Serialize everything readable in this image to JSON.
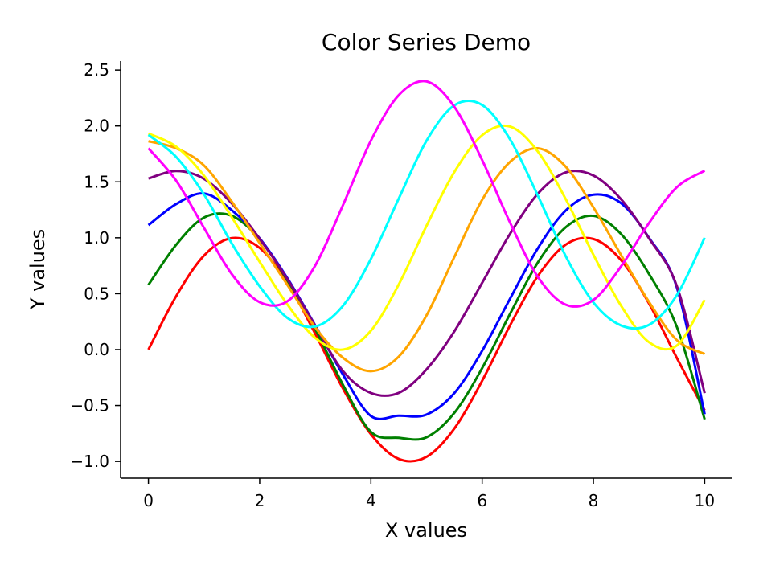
{
  "chart_data": {
    "type": "line",
    "title": "Color Series Demo",
    "xlabel": "X values",
    "ylabel": "Y values",
    "xlim": [
      -0.5,
      10.5
    ],
    "ylim": [
      -1.15,
      2.58
    ],
    "xticks": [
      0,
      2,
      4,
      6,
      8,
      10
    ],
    "xtick_labels": [
      "0",
      "2",
      "4",
      "6",
      "8",
      "10"
    ],
    "yticks": [
      -1.0,
      -0.5,
      0.0,
      0.5,
      1.0,
      1.5,
      2.0,
      2.5
    ],
    "ytick_labels": [
      "−1.0",
      "−0.5",
      "0.0",
      "0.5",
      "1.0",
      "1.5",
      "2.0",
      "2.5"
    ],
    "grid": false,
    "legend": "none",
    "x": [
      0,
      0.5,
      1,
      1.5,
      2,
      2.5,
      3,
      3.5,
      4,
      4.5,
      5,
      5.5,
      6,
      6.5,
      7,
      7.5,
      8,
      8.5,
      9,
      9.5,
      10
    ],
    "series": [
      {
        "color": "#ff0000",
        "values": [
          0.0,
          0.479,
          0.841,
          0.997,
          0.909,
          0.598,
          0.141,
          -0.351,
          -0.757,
          -0.978,
          -0.959,
          -0.706,
          -0.279,
          0.215,
          0.657,
          0.938,
          0.989,
          0.798,
          0.412,
          -0.075,
          -0.544
        ]
      },
      {
        "color": "#008000",
        "values": [
          0.579,
          0.938,
          1.181,
          1.196,
          0.987,
          0.619,
          0.183,
          -0.318,
          -0.736,
          -0.789,
          -0.784,
          -0.566,
          -0.166,
          0.318,
          0.778,
          1.093,
          1.196,
          1.032,
          0.676,
          0.203,
          -0.624
        ]
      },
      {
        "color": "#0000ff",
        "values": [
          1.113,
          1.302,
          1.396,
          1.246,
          0.995,
          0.637,
          0.215,
          -0.226,
          -0.594,
          -0.591,
          -0.581,
          -0.389,
          -0.011,
          0.454,
          0.905,
          1.243,
          1.385,
          1.308,
          0.999,
          0.556,
          -0.578
        ]
      },
      {
        "color": "#800080",
        "values": [
          1.53,
          1.597,
          1.527,
          1.306,
          0.991,
          0.629,
          0.212,
          -0.194,
          -0.388,
          -0.387,
          -0.177,
          0.163,
          0.597,
          1.034,
          1.393,
          1.584,
          1.557,
          1.343,
          0.995,
          0.568,
          -0.39
        ]
      },
      {
        "color": "#ffa500",
        "values": [
          1.863,
          1.8,
          1.646,
          1.322,
          0.952,
          0.577,
          0.197,
          -0.074,
          -0.193,
          -0.063,
          0.306,
          0.828,
          1.339,
          1.678,
          1.8,
          1.637,
          1.272,
          0.843,
          0.426,
          0.085,
          -0.04
        ]
      },
      {
        "color": "#ffff00",
        "values": [
          1.932,
          1.814,
          1.555,
          1.183,
          0.785,
          0.402,
          0.104,
          0.0,
          0.169,
          0.582,
          1.107,
          1.588,
          1.917,
          1.995,
          1.772,
          1.348,
          0.848,
          0.39,
          0.066,
          0.036,
          0.444
        ]
      },
      {
        "color": "#00ffff",
        "values": [
          1.92,
          1.722,
          1.387,
          0.948,
          0.566,
          0.283,
          0.207,
          0.393,
          0.811,
          1.35,
          1.868,
          2.184,
          2.187,
          1.881,
          1.378,
          0.838,
          0.422,
          0.215,
          0.221,
          0.487,
          1.0
        ]
      },
      {
        "color": "#ff00ff",
        "values": [
          1.8,
          1.51,
          1.088,
          0.674,
          0.424,
          0.433,
          0.753,
          1.295,
          1.869,
          2.275,
          2.398,
          2.171,
          1.695,
          1.137,
          0.651,
          0.402,
          0.444,
          0.746,
          1.132,
          1.452,
          1.6
        ]
      }
    ]
  }
}
